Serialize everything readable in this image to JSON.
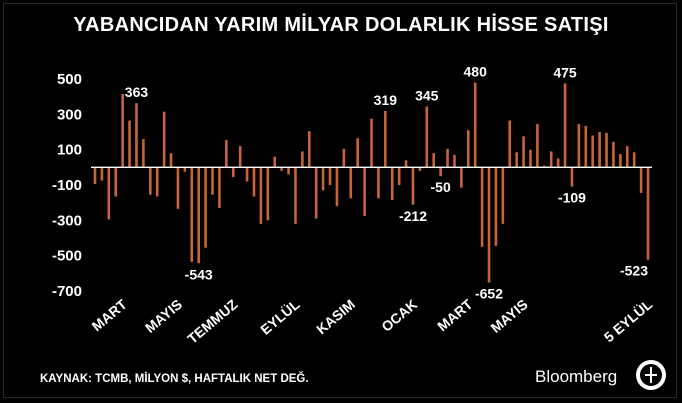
{
  "chart_data": {
    "type": "bar",
    "title": "YABANCIDAN YARIM MİLYAR DOLARLIK HİSSE SATIŞI",
    "xlabel": "",
    "ylabel": "",
    "ylim": [
      -700,
      500
    ],
    "yticks": [
      500,
      300,
      100,
      -100,
      -300,
      -500,
      -700
    ],
    "x_tick_labels": [
      "MART",
      "MAYIS",
      "TEMMUZ",
      "EYLÜL",
      "KASIM",
      "OCAK",
      "MART",
      "MAYIS",
      "5 EYLÜL"
    ],
    "x_tick_positions": [
      1,
      9,
      17,
      26,
      34,
      43,
      51,
      59,
      77
    ],
    "bar_color": "#c8643a",
    "values": [
      -95,
      -75,
      -295,
      -165,
      415,
      265,
      363,
      160,
      -155,
      -165,
      315,
      80,
      -235,
      -25,
      -535,
      -543,
      -455,
      -155,
      -230,
      155,
      -55,
      120,
      -80,
      -165,
      -320,
      -300,
      60,
      -20,
      -40,
      -320,
      90,
      205,
      -290,
      -130,
      -100,
      -220,
      105,
      -175,
      165,
      -275,
      275,
      -175,
      319,
      -185,
      -100,
      40,
      -212,
      -20,
      345,
      80,
      -50,
      105,
      70,
      -115,
      210,
      480,
      -450,
      -652,
      -445,
      -320,
      265,
      85,
      175,
      100,
      245,
      10,
      90,
      50,
      475,
      -109,
      245,
      235,
      180,
      200,
      195,
      145,
      75,
      120,
      85,
      -145,
      -523
    ],
    "annotations": [
      "363",
      "-543",
      "319",
      "-212",
      "345",
      "-50",
      "480",
      "-652",
      "475",
      "-109",
      "-523"
    ],
    "annotation_index": [
      6,
      15,
      42,
      46,
      48,
      50,
      55,
      57,
      68,
      69,
      80
    ],
    "source": "KAYNAK: TCMB, MİLYON $, HAFTALIK NET DEĞ.",
    "brand": "Bloomberg",
    "logo": "HT"
  }
}
